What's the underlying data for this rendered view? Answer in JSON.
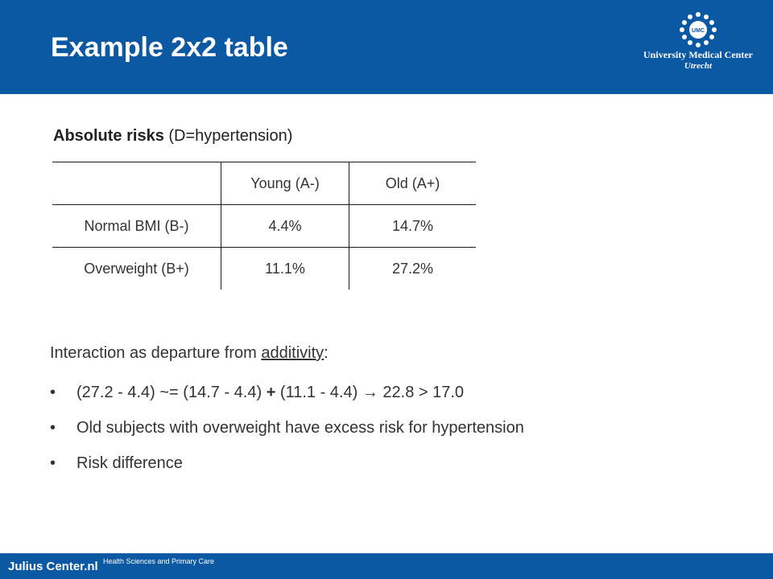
{
  "header": {
    "title": "Example 2x2 table",
    "logo": {
      "emblem_text": "UMC",
      "line1": "University Medical Center",
      "line2": "Utrecht"
    }
  },
  "subtitle": {
    "bold": "Absolute risks",
    "rest": "(D=hypertension)"
  },
  "table": {
    "headers": [
      "",
      "Young (A-)",
      "Old (A+)"
    ],
    "rows": [
      [
        "Normal BMI (B-)",
        "4.4%",
        "14.7%"
      ],
      [
        "Overweight (B+)",
        "11.1%",
        "27.2%"
      ]
    ]
  },
  "body": {
    "intro_prefix": "Interaction as departure from ",
    "intro_underlined": "additivity",
    "intro_suffix": ":",
    "bullet_char": "•",
    "bullets": [
      {
        "part1": "(27.2 - 4.4) ~= (14.7 - 4.4) ",
        "plus": "+",
        "part2": " (11.1 - 4.4) ",
        "arrow": "→",
        "part3": " 22.8 > 17.0"
      },
      {
        "text": "Old subjects with overweight have excess risk for hypertension"
      },
      {
        "text": "Risk difference"
      }
    ]
  },
  "footer": {
    "brand": "Julius Center.nl",
    "subtitle": "Health Sciences and Primary Care"
  },
  "colors": {
    "brand_blue": "#0b58a3",
    "text": "#333333"
  }
}
